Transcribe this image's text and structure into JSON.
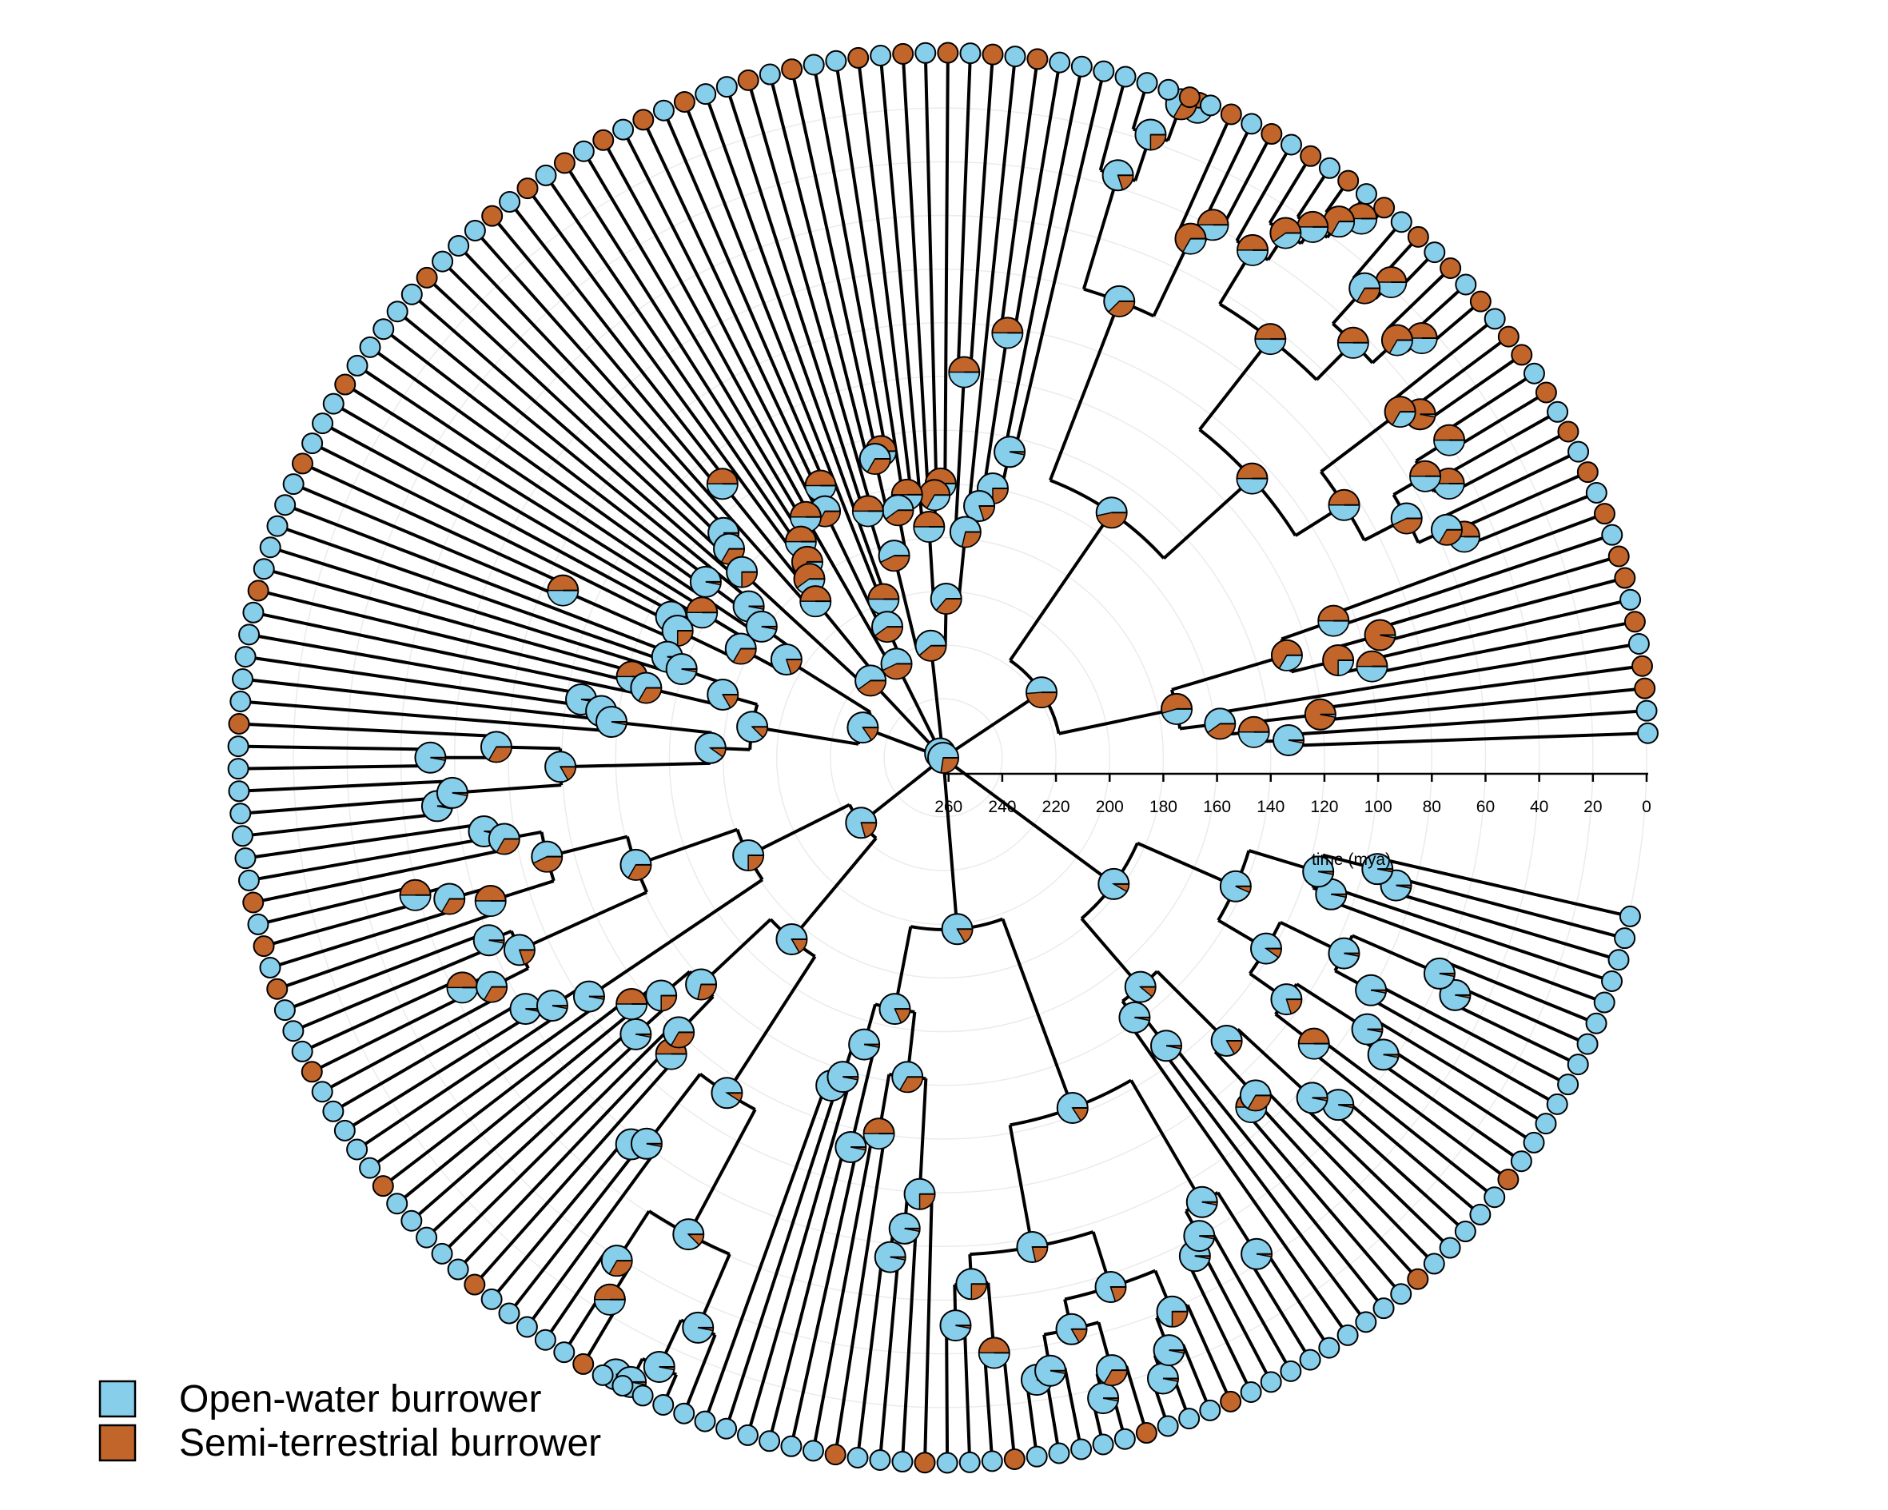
{
  "figure": {
    "type": "circular-phylogeny-ancestral-state",
    "time_axis": {
      "label": "time (mya)",
      "ticks": [
        260,
        240,
        220,
        200,
        180,
        160,
        140,
        120,
        100,
        80,
        60,
        40,
        20,
        0
      ],
      "root_age": 262
    },
    "legend": {
      "position": "bottom-left",
      "items": [
        {
          "label": "Open-water burrower",
          "color": "#87CEEB"
        },
        {
          "label": "Semi-terrestrial burrower",
          "color": "#C1652B"
        }
      ]
    },
    "colors": {
      "open_water": "#87CEEB",
      "semi_terrestrial": "#C1652B",
      "branch": "#000000",
      "rings": "#ebebeb"
    }
  }
}
